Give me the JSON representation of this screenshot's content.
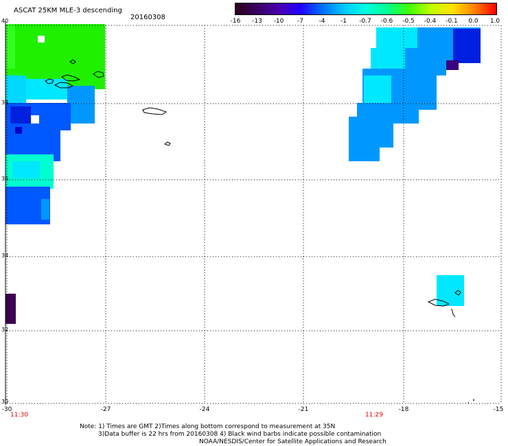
{
  "header": {
    "title": "ASCAT 25KM MLE-3 descending",
    "date": "20160308"
  },
  "colorbar": {
    "labels": [
      "-16",
      "-13",
      "-10",
      "-7",
      "-4",
      "-1",
      "-0.7",
      "-0.6",
      "-0.5",
      "-0.4",
      "-0.1",
      "0.0",
      "1.0"
    ],
    "colors": [
      "#2a001a",
      "#3a0060",
      "#4a00b0",
      "#2000ff",
      "#0070ff",
      "#00c8ff",
      "#00ffe0",
      "#00ff90",
      "#40ff00",
      "#c0ff00",
      "#ffe000",
      "#ff8000",
      "#ff0000"
    ]
  },
  "axes": {
    "lat_labels": [
      "40",
      "38",
      "36",
      "34",
      "32",
      "30"
    ],
    "lon_labels": [
      "-30",
      "-27",
      "-24",
      "-21",
      "-18",
      "-15"
    ]
  },
  "times": {
    "left": "11:30",
    "right": "11:29"
  },
  "notes": {
    "line1": "Note: 1) Times are GMT 2)Times along bottom correspond to measurement at 35N",
    "line2": "3)Data buffer is 22 hrs from 20160308 4) Black wind barbs indicate possible contamination",
    "line3": "NOAA/NESDIS/Center for Satellite Applications and Research"
  },
  "map": {
    "lat_range": [
      30,
      40
    ],
    "lon_range": [
      -30,
      -15
    ],
    "colors": {
      "green": "#1ef000",
      "cyan": "#00e8ff",
      "lightcyan": "#00d8ff",
      "teal": "#00ffd0",
      "blue": "#0058ff",
      "skyblue": "#0098ff",
      "darkblue": "#0020e0",
      "navy": "#0000c8",
      "purple": "#3c0050"
    }
  }
}
